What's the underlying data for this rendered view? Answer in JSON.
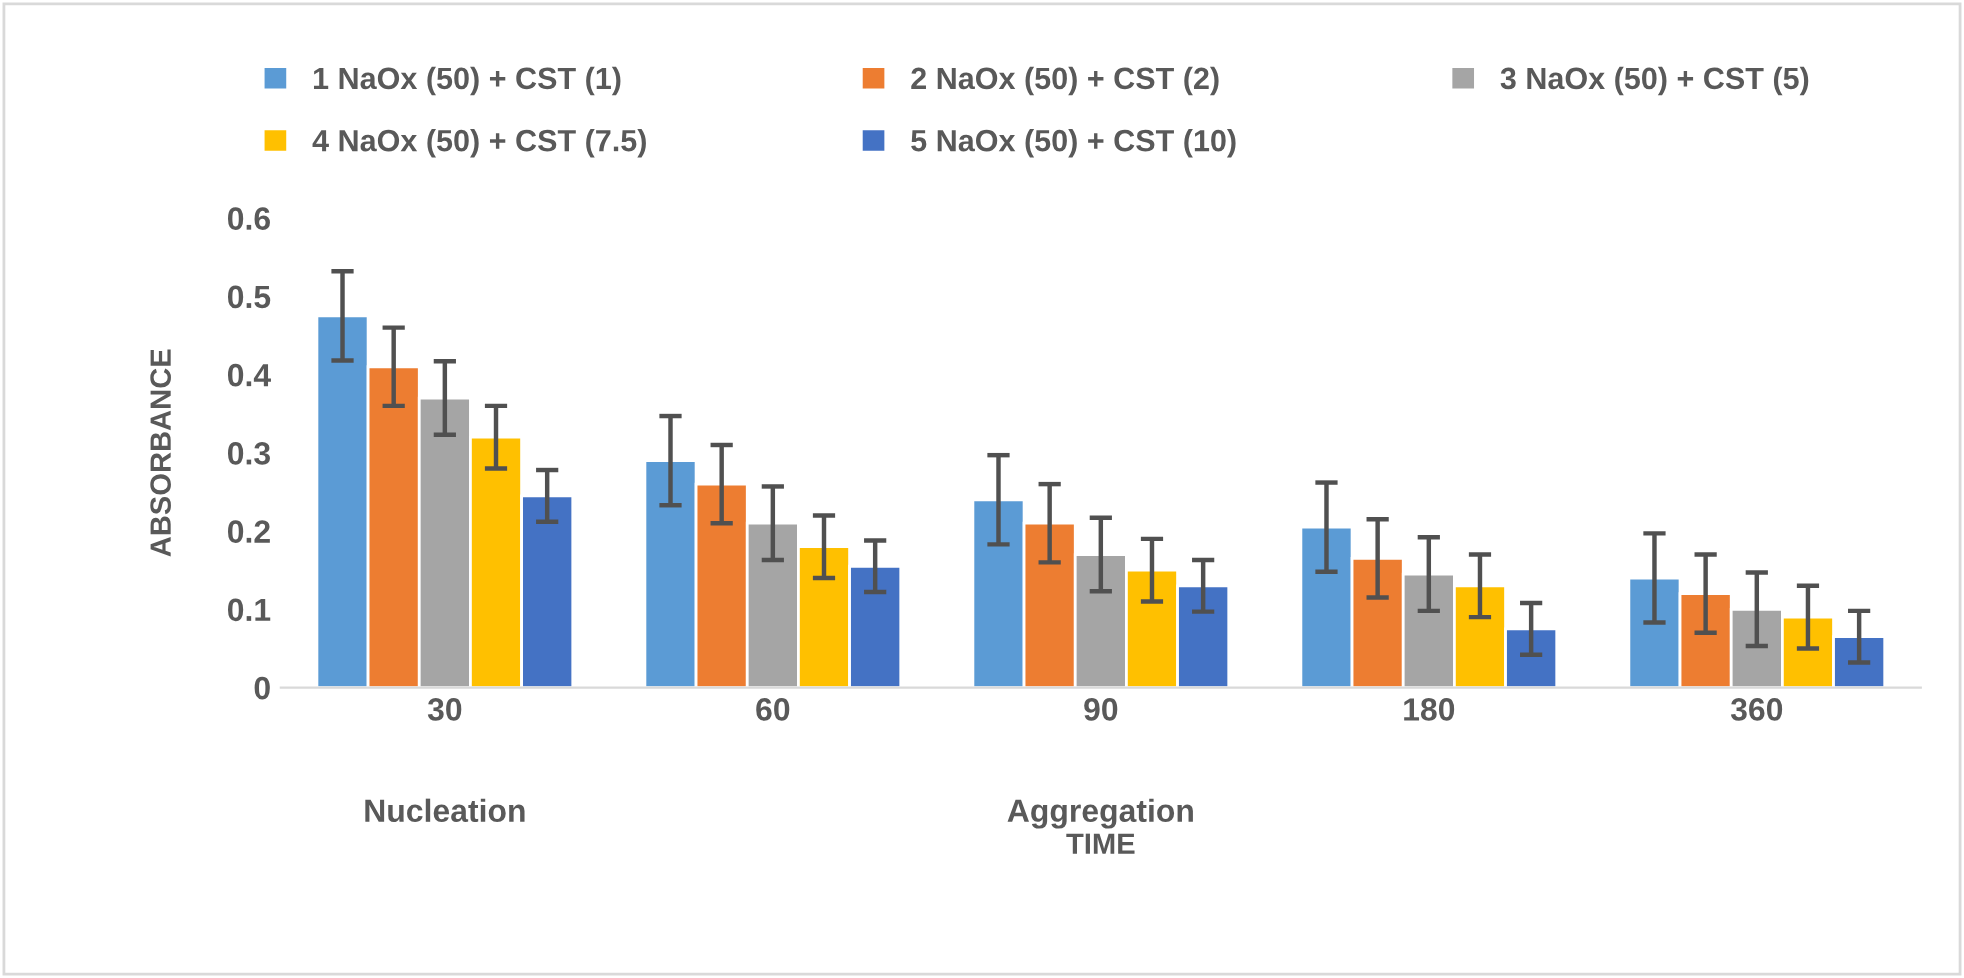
{
  "chart_data": {
    "type": "bar",
    "xlabel": "TIME",
    "ylabel": "ABSORBANCE",
    "categories": [
      "30",
      "60",
      "90",
      "180",
      "360"
    ],
    "series": [
      {
        "name": "1 NaOx (50) + CST (1)",
        "color": "#5b9bd5",
        "values": [
          0.475,
          0.29,
          0.24,
          0.205,
          0.14
        ],
        "errors": [
          0.057,
          0.057,
          0.057,
          0.057,
          0.057
        ]
      },
      {
        "name": "2 NaOx (50) + CST (2)",
        "color": "#ed7d31",
        "values": [
          0.41,
          0.26,
          0.21,
          0.165,
          0.12
        ],
        "errors": [
          0.05,
          0.05,
          0.05,
          0.05,
          0.05
        ]
      },
      {
        "name": "3 NaOx (50) + CST (5)",
        "color": "#a5a5a5",
        "values": [
          0.37,
          0.21,
          0.17,
          0.145,
          0.1
        ],
        "errors": [
          0.047,
          0.047,
          0.047,
          0.047,
          0.047
        ]
      },
      {
        "name": "4 NaOx (50) + CST (7.5)",
        "color": "#ffc000",
        "values": [
          0.32,
          0.18,
          0.15,
          0.13,
          0.09
        ],
        "errors": [
          0.04,
          0.04,
          0.04,
          0.04,
          0.04
        ]
      },
      {
        "name": "5 NaOx (50) + CST (10)",
        "color": "#4472c4",
        "values": [
          0.245,
          0.155,
          0.13,
          0.075,
          0.065
        ],
        "errors": [
          0.033,
          0.033,
          0.033,
          0.033,
          0.033
        ]
      }
    ],
    "ylim": [
      0,
      0.6
    ],
    "yticks": [
      0,
      0.1,
      0.2,
      0.3,
      0.4,
      0.5,
      0.6
    ],
    "legend": "top",
    "grid": false,
    "annotations": [
      "Nucleation",
      "Aggregation"
    ]
  }
}
